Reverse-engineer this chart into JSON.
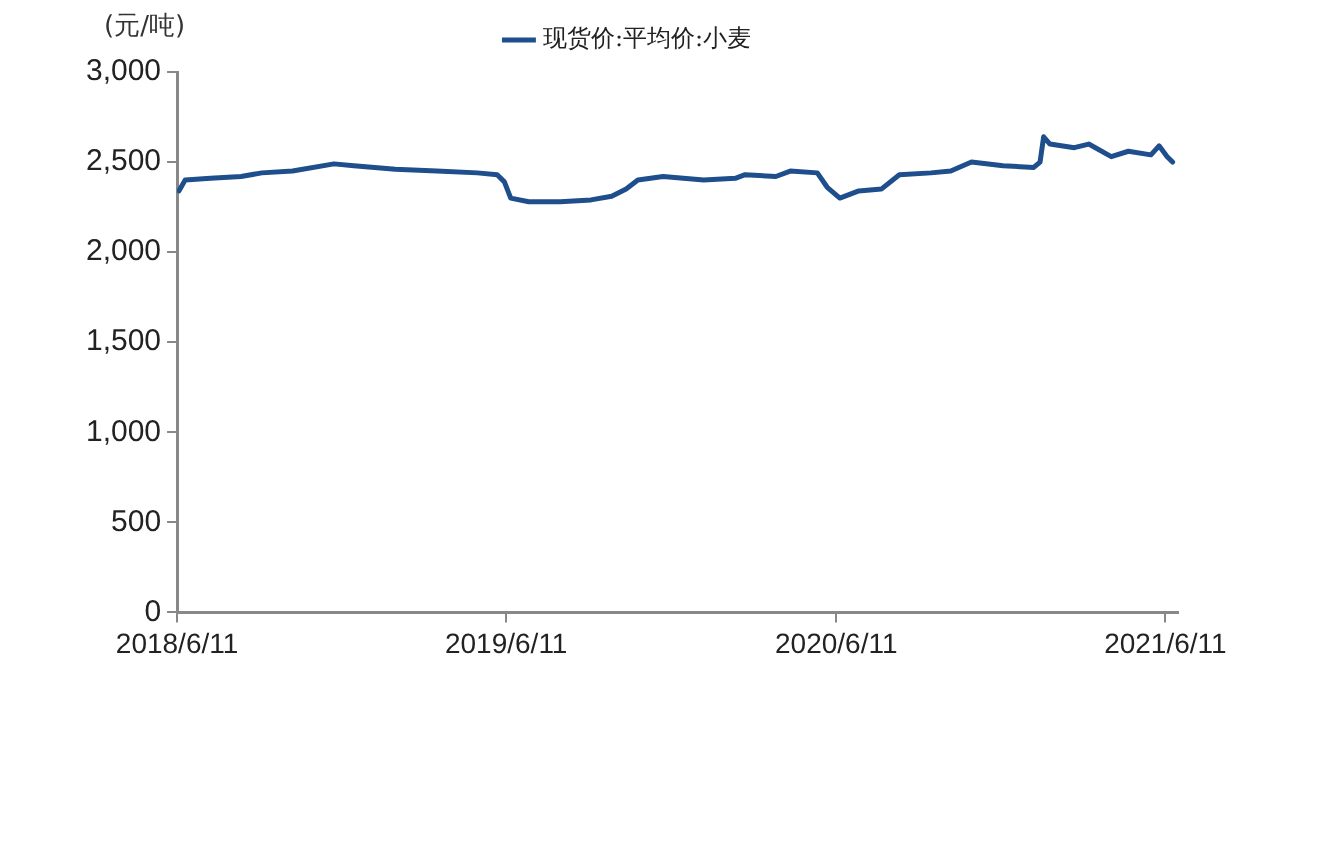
{
  "chart_data": {
    "type": "line",
    "ylabel": "(元/吨)",
    "legend": "top",
    "x": [
      "2018-06-13",
      "2018-06-20",
      "2018-07-18",
      "2018-08-21",
      "2018-09-13",
      "2018-10-17",
      "2018-12-02",
      "2018-12-24",
      "2019-02-08",
      "2019-03-26",
      "2019-05-10",
      "2019-06-01",
      "2019-06-09",
      "2019-06-16",
      "2019-07-06",
      "2019-08-10",
      "2019-09-13",
      "2019-10-06",
      "2019-10-22",
      "2019-11-04",
      "2019-12-02",
      "2020-01-16",
      "2020-02-20",
      "2020-03-02",
      "2020-04-05",
      "2020-04-21",
      "2020-05-21",
      "2020-06-01",
      "2020-06-15",
      "2020-07-06",
      "2020-07-31",
      "2020-08-20",
      "2020-09-24",
      "2020-10-16",
      "2020-11-08",
      "2020-12-13",
      "2021-01-16",
      "2021-01-23",
      "2021-01-27",
      "2021-02-03",
      "2021-03-02",
      "2021-03-18",
      "2021-04-12",
      "2021-05-01",
      "2021-05-26",
      "2021-06-04",
      "2021-06-13",
      "2021-06-19"
    ],
    "series": [
      {
        "name": "现货价:平均价:小麦",
        "color": "#1f4e8c",
        "values": [
          2340,
          2400,
          2410,
          2420,
          2440,
          2450,
          2490,
          2480,
          2460,
          2450,
          2440,
          2430,
          2390,
          2300,
          2280,
          2280,
          2290,
          2310,
          2350,
          2400,
          2420,
          2400,
          2410,
          2430,
          2420,
          2450,
          2440,
          2360,
          2300,
          2340,
          2350,
          2430,
          2440,
          2450,
          2500,
          2480,
          2470,
          2500,
          2640,
          2600,
          2580,
          2600,
          2530,
          2560,
          2540,
          2590,
          2530,
          2500
        ]
      }
    ],
    "xlim": [
      "2018-06-11",
      "2021-06-25"
    ],
    "xticks": [
      {
        "value": "2018-06-11",
        "label": "2018/6/11"
      },
      {
        "value": "2019-06-11",
        "label": "2019/6/11"
      },
      {
        "value": "2020-06-11",
        "label": "2020/6/11"
      },
      {
        "value": "2021-06-11",
        "label": "2021/6/11"
      }
    ],
    "ylim": [
      0,
      3000
    ],
    "yticks": [
      0,
      500,
      {
        "value": 1000,
        "label": "1,000"
      },
      {
        "value": 1500,
        "label": "1,500"
      },
      {
        "value": 2000,
        "label": "2,000"
      },
      {
        "value": 2500,
        "label": "2,500"
      },
      {
        "value": 3000,
        "label": "3,000"
      }
    ],
    "grid": false,
    "marker": "none",
    "line_style": "solid"
  }
}
